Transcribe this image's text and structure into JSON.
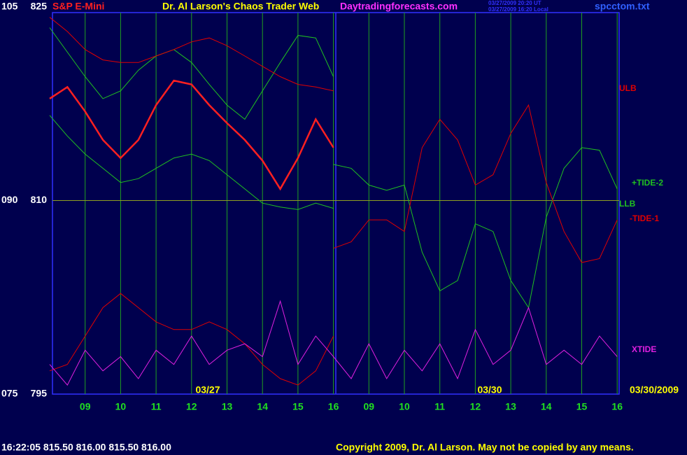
{
  "header": {
    "symbol": "S&P E-Mini",
    "title": "Dr. Al Larson's Chaos Trader Web",
    "site": "Daytradingforecasts.com",
    "stamp": [
      "03/27/2009 20:20 UT",
      "03/27/2009 16:20 Local"
    ],
    "file": "spcctom.txt"
  },
  "footer": {
    "quote": "16:22:05 815.50 816.00 815.50 816.00",
    "copyright": "Copyright 2009, Dr. Al Larson. May not be copied by any means."
  },
  "chart_data": {
    "type": "line",
    "categories": [
      null,
      null,
      "09",
      null,
      "10",
      null,
      "11",
      null,
      "12",
      null,
      "13",
      null,
      "14",
      null,
      "15",
      null,
      "16",
      null,
      "09",
      null,
      "10",
      null,
      "11",
      null,
      "12",
      null,
      "13",
      null,
      "14",
      null,
      "15",
      null,
      "16"
    ],
    "date_labels": [
      "03/27",
      "03/30",
      "03/30/2009"
    ],
    "ylim": [
      795,
      825
    ],
    "yticks": [
      795,
      810,
      825
    ],
    "y2lim": [
      75,
      105
    ],
    "y2ticks": [
      {
        "value": 75,
        "label": "075"
      },
      {
        "value": 90,
        "label": "090"
      },
      105
    ],
    "grid": true,
    "series": [
      {
        "color": "#ff2020",
        "values": [
          817.9,
          818.8,
          816.9,
          814.7,
          813.3,
          814.7,
          817.4,
          819.3,
          819.0,
          817.4,
          816.0,
          814.7,
          813.1,
          810.9,
          813.3,
          816.3,
          814.1,
          null,
          null,
          null,
          null,
          null,
          null,
          null,
          null,
          null,
          null,
          null,
          null,
          null,
          null,
          null,
          null
        ]
      },
      {
        "color": "#20c020",
        "values": [
          823.4,
          821.5,
          819.6,
          817.9,
          818.5,
          820.1,
          821.2,
          821.7,
          820.7,
          819.0,
          817.4,
          816.3,
          818.5,
          820.7,
          822.8,
          822.6,
          819.6,
          null,
          null,
          null,
          null,
          null,
          null,
          null,
          null,
          null,
          null,
          null,
          null,
          null,
          null,
          null,
          null
        ]
      },
      {
        "color": "#e00000",
        "values": [
          796.8,
          797.3,
          799.5,
          801.7,
          802.8,
          801.7,
          800.6,
          800.0,
          800.0,
          800.6,
          800.0,
          798.9,
          797.3,
          796.2,
          795.7,
          796.8,
          799.5,
          null,
          null,
          null,
          null,
          null,
          null,
          null,
          null,
          null,
          null,
          null,
          null,
          null,
          null,
          null,
          null
        ]
      },
      {
        "name": "ULB",
        "color": "#e00000",
        "values": [
          824.2,
          823.1,
          821.7,
          820.9,
          820.7,
          820.7,
          821.2,
          821.7,
          822.3,
          822.6,
          822.0,
          821.2,
          820.4,
          819.6,
          819.0,
          818.8,
          818.5,
          null,
          null,
          null,
          null,
          null,
          null,
          null,
          null,
          null,
          null,
          null,
          null,
          null,
          null,
          null,
          null
        ]
      },
      {
        "name": "LLB",
        "color": "#20c020",
        "values": [
          816.6,
          815.0,
          813.6,
          812.5,
          811.4,
          811.7,
          812.5,
          813.3,
          813.6,
          813.1,
          812.0,
          810.9,
          809.8,
          809.5,
          809.3,
          809.8,
          809.4,
          null,
          null,
          null,
          null,
          null,
          null,
          null,
          null,
          null,
          null,
          null,
          null,
          null,
          null,
          null,
          null
        ]
      },
      {
        "name": "+TIDE-2",
        "color": "#20c020",
        "values": [
          null,
          null,
          null,
          null,
          null,
          null,
          null,
          null,
          null,
          null,
          null,
          null,
          null,
          null,
          null,
          null,
          812.8,
          812.5,
          811.2,
          810.8,
          811.2,
          806.0,
          803.0,
          803.8,
          808.2,
          807.6,
          803.8,
          801.7,
          808.7,
          812.5,
          814.1,
          813.9,
          810.9
        ]
      },
      {
        "name": "-TIDE-1",
        "color": "#e00000",
        "values": [
          null,
          null,
          null,
          null,
          null,
          null,
          null,
          null,
          null,
          null,
          null,
          null,
          null,
          null,
          null,
          null,
          806.3,
          806.8,
          808.5,
          808.5,
          807.6,
          814.1,
          816.3,
          814.7,
          811.2,
          812.0,
          815.2,
          817.4,
          811.4,
          807.6,
          805.2,
          805.5,
          808.5
        ]
      },
      {
        "name": "XTIDE",
        "color": "#e020e0",
        "values": [
          797.3,
          795.7,
          798.4,
          796.8,
          797.9,
          796.2,
          798.4,
          797.3,
          799.5,
          797.3,
          798.4,
          798.9,
          797.9,
          802.2,
          797.3,
          799.5,
          797.9,
          796.2,
          798.9,
          796.2,
          798.4,
          796.8,
          798.9,
          796.2,
          800.0,
          797.3,
          798.4,
          801.7,
          797.3,
          798.4,
          797.3,
          799.5,
          797.9
        ]
      }
    ]
  }
}
